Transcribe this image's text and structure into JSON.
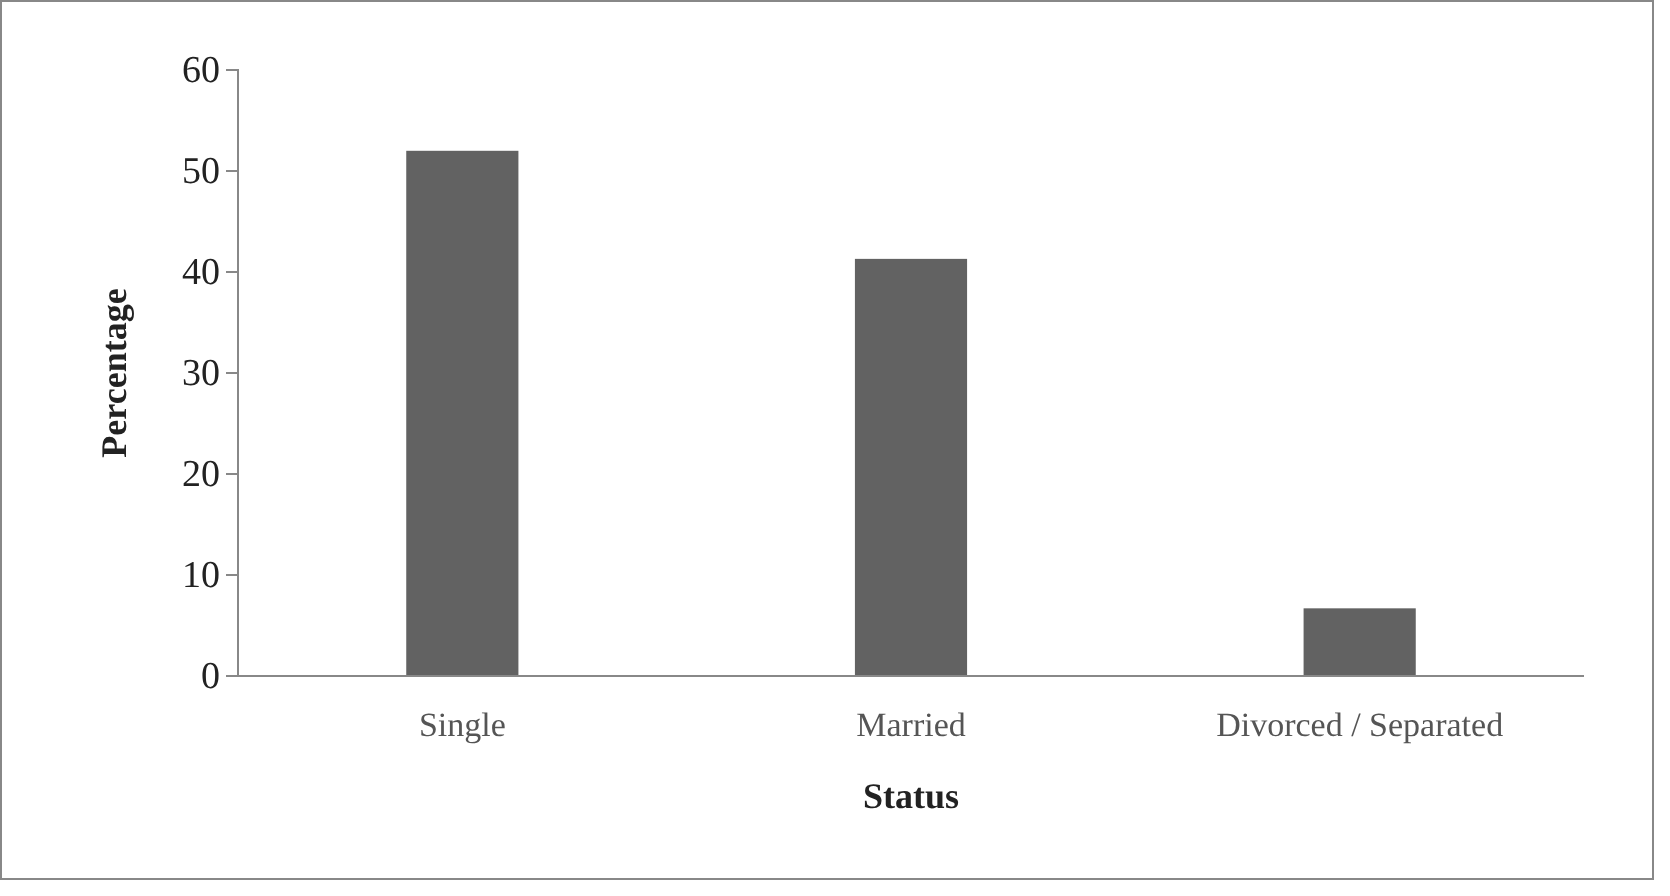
{
  "chart_data": {
    "type": "bar",
    "xlabel": "Status",
    "ylabel": "Percentage",
    "categories": [
      "Single",
      "Married",
      "Divorced / Separated"
    ],
    "values": [
      52,
      41.3,
      6.7
    ],
    "color": "#626262",
    "ylim": [
      0,
      60
    ],
    "yticks": [
      0,
      10,
      20,
      30,
      40,
      50,
      60
    ],
    "grid": false
  }
}
